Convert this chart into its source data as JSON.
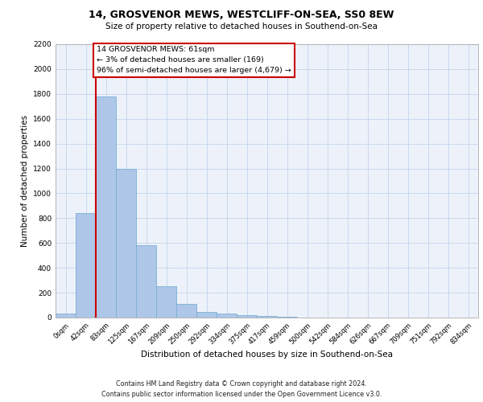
{
  "title1": "14, GROSVENOR MEWS, WESTCLIFF-ON-SEA, SS0 8EW",
  "title2": "Size of property relative to detached houses in Southend-on-Sea",
  "xlabel": "Distribution of detached houses by size in Southend-on-Sea",
  "ylabel": "Number of detached properties",
  "footer1": "Contains HM Land Registry data © Crown copyright and database right 2024.",
  "footer2": "Contains public sector information licensed under the Open Government Licence v3.0.",
  "bar_labels": [
    "0sqm",
    "42sqm",
    "83sqm",
    "125sqm",
    "167sqm",
    "209sqm",
    "250sqm",
    "292sqm",
    "334sqm",
    "375sqm",
    "417sqm",
    "459sqm",
    "500sqm",
    "542sqm",
    "584sqm",
    "626sqm",
    "667sqm",
    "709sqm",
    "751sqm",
    "792sqm",
    "834sqm"
  ],
  "bar_values": [
    30,
    840,
    1780,
    1200,
    580,
    250,
    110,
    45,
    30,
    20,
    10,
    5,
    2,
    0,
    0,
    0,
    0,
    0,
    0,
    0,
    0
  ],
  "bar_color": "#aec6e8",
  "bar_edge_color": "#7aafd4",
  "grid_color": "#c8d8ee",
  "vline_color": "#cc0000",
  "annotation_text": "14 GROSVENOR MEWS: 61sqm\n← 3% of detached houses are smaller (169)\n96% of semi-detached houses are larger (4,679) →",
  "annotation_box_color": "#ffffff",
  "annotation_box_edge": "#cc0000",
  "ylim": [
    0,
    2200
  ],
  "yticks": [
    0,
    200,
    400,
    600,
    800,
    1000,
    1200,
    1400,
    1600,
    1800,
    2000,
    2200
  ],
  "background_color": "#edf2fa"
}
